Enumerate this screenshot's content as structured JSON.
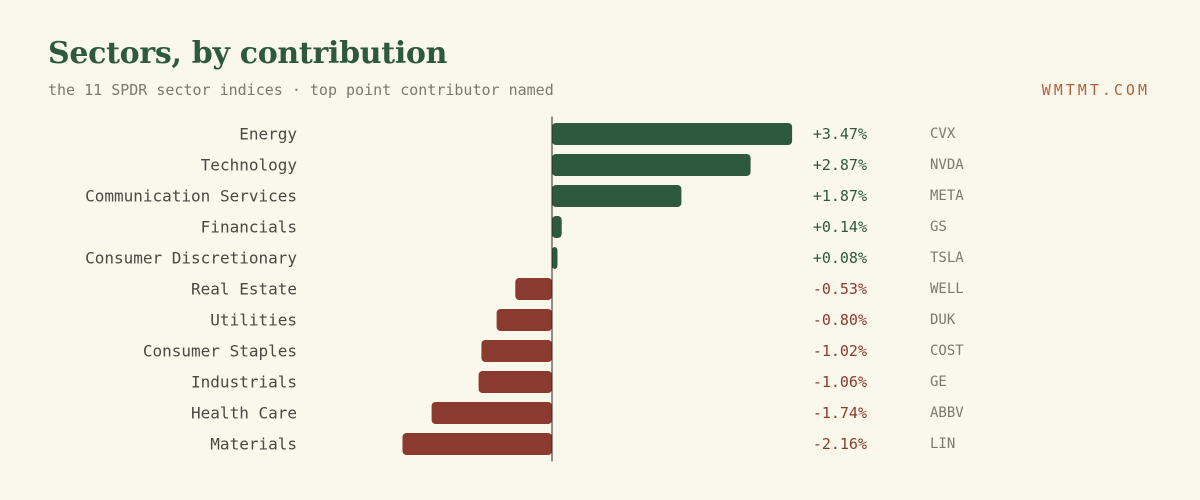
{
  "header": {
    "title": "Sectors, by contribution",
    "subtitle": "the 11 SPDR sector indices · top point contributor named",
    "brand": "WMTMT.COM"
  },
  "colors": {
    "background": "#faf7eb",
    "positive": "#2d5a3d",
    "negative": "#8b3a2f",
    "axis": "#2a2a2a",
    "brand": "#b5603a"
  },
  "chart_data": {
    "type": "bar",
    "orientation": "horizontal",
    "categories": [
      "Energy",
      "Technology",
      "Communication Services",
      "Financials",
      "Consumer Discretionary",
      "Real Estate",
      "Utilities",
      "Consumer Staples",
      "Industrials",
      "Health Care",
      "Materials"
    ],
    "values": [
      3.47,
      2.87,
      1.87,
      0.14,
      0.08,
      -0.53,
      -0.8,
      -1.02,
      -1.06,
      -1.74,
      -2.16
    ],
    "value_labels": [
      "+3.47%",
      "+2.87%",
      "+1.87%",
      "+0.14%",
      "+0.08%",
      "-0.53%",
      "-0.80%",
      "-1.02%",
      "-1.06%",
      "-1.74%",
      "-2.16%"
    ],
    "top_contributors": [
      "CVX",
      "NVDA",
      "META",
      "GS",
      "TSLA",
      "WELL",
      "DUK",
      "COST",
      "GE",
      "ABBV",
      "LIN"
    ],
    "grid": false,
    "legend": "none"
  }
}
